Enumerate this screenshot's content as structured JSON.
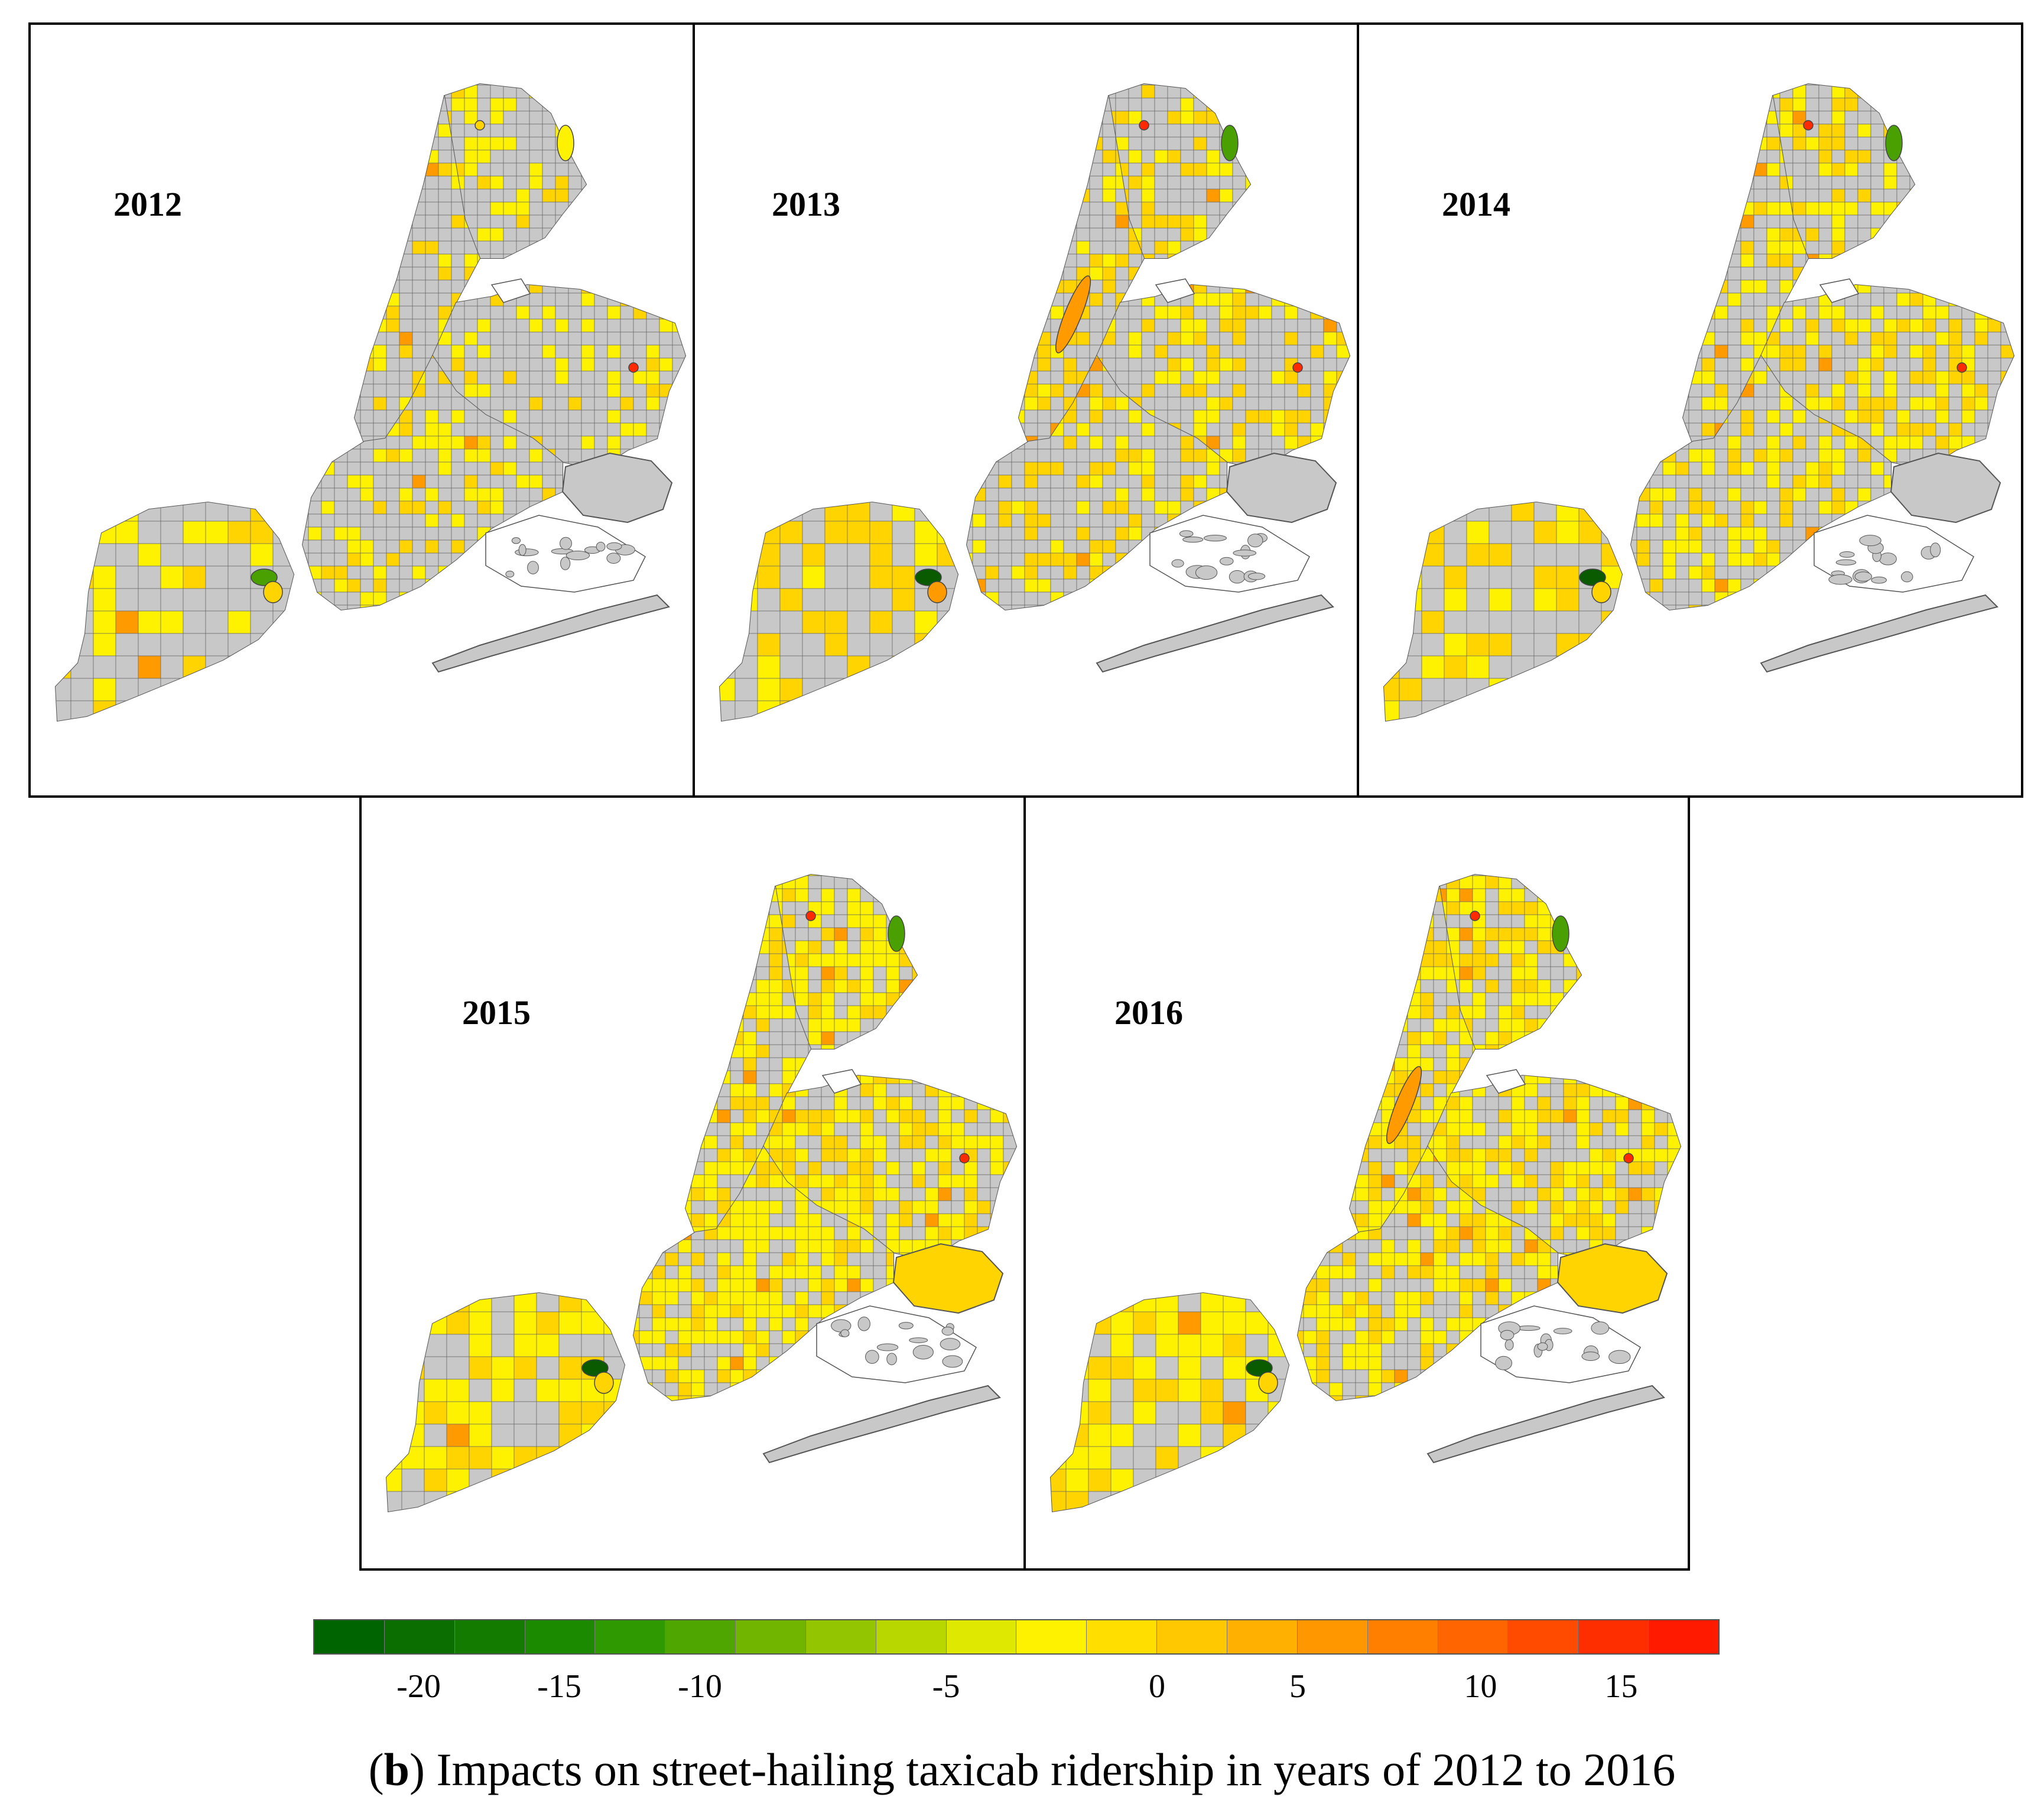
{
  "panels": [
    {
      "year": "2012",
      "intensity": 0.3,
      "shade": 0.38
    },
    {
      "year": "2013",
      "intensity": 0.38,
      "shade": 0.5
    },
    {
      "year": "2014",
      "intensity": 0.45,
      "shade": 0.45
    },
    {
      "year": "2015",
      "intensity": 0.62,
      "shade": 0.3
    },
    {
      "year": "2016",
      "intensity": 0.66,
      "shade": 0.36
    }
  ],
  "legend": {
    "colors": [
      "#006400",
      "#0b6e00",
      "#137b00",
      "#1b8a00",
      "#2e9900",
      "#4fa600",
      "#72b500",
      "#94c600",
      "#b8d600",
      "#dfe800",
      "#fff200",
      "#ffde00",
      "#ffc800",
      "#ffb000",
      "#ff9800",
      "#ff7f00",
      "#ff6500",
      "#ff4b00",
      "#ff2e00",
      "#ff1a00"
    ],
    "ticks": [
      {
        "label": "-20",
        "index": 1.5
      },
      {
        "label": "-15",
        "index": 3.5
      },
      {
        "label": "-10",
        "index": 5.5
      },
      {
        "label": "-5",
        "index": 9.0
      },
      {
        "label": "0",
        "index": 12.0
      },
      {
        "label": "5",
        "index": 14.0
      },
      {
        "label": "10",
        "index": 16.6
      },
      {
        "label": "15",
        "index": 18.6
      }
    ]
  },
  "caption": {
    "open": "(",
    "letter": "b",
    "rest": ") Impacts on street-hailing taxicab ridership in years of 2012 to 2016"
  },
  "colors": {
    "land": "#c8c8c8",
    "boundary": "#555555",
    "yellow": "#fff200",
    "gold": "#ffd400",
    "orange": "#ff9a00",
    "red": "#ff2a00",
    "green": "#4aa000",
    "darkgreen": "#0a5a00"
  }
}
